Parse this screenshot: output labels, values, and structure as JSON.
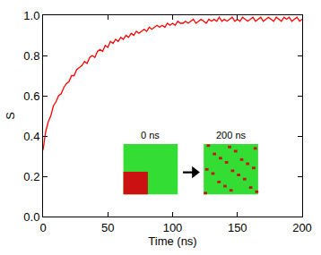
{
  "chart_data": {
    "type": "line",
    "x_label": "Time (ns)",
    "y_label": "S",
    "annotations": [
      {
        "text": "0 ns"
      },
      {
        "text": "200 ns"
      }
    ],
    "x": [
      0,
      2,
      4,
      6,
      8,
      10,
      12,
      14,
      16,
      18,
      20,
      22,
      24,
      26,
      28,
      30,
      32,
      34,
      36,
      38,
      40,
      42,
      44,
      46,
      48,
      50,
      52,
      54,
      56,
      58,
      60,
      62,
      64,
      66,
      68,
      70,
      72,
      74,
      76,
      78,
      80,
      82,
      84,
      86,
      88,
      90,
      92,
      94,
      96,
      98,
      100,
      102,
      104,
      106,
      108,
      110,
      112,
      114,
      116,
      118,
      120,
      122,
      124,
      126,
      128,
      130,
      132,
      134,
      136,
      138,
      140,
      142,
      144,
      146,
      148,
      150,
      152,
      154,
      156,
      158,
      160,
      162,
      164,
      166,
      168,
      170,
      172,
      174,
      176,
      178,
      180,
      182,
      184,
      186,
      188,
      190,
      192,
      194,
      196,
      198,
      200
    ],
    "series": [
      {
        "color": "#ff0000",
        "values": [
          0.33,
          0.42,
          0.47,
          0.5,
          0.55,
          0.57,
          0.6,
          0.61,
          0.64,
          0.66,
          0.67,
          0.7,
          0.7,
          0.73,
          0.74,
          0.75,
          0.77,
          0.76,
          0.79,
          0.8,
          0.79,
          0.82,
          0.83,
          0.82,
          0.85,
          0.84,
          0.87,
          0.86,
          0.88,
          0.87,
          0.89,
          0.88,
          0.9,
          0.89,
          0.91,
          0.9,
          0.92,
          0.91,
          0.92,
          0.93,
          0.92,
          0.94,
          0.93,
          0.94,
          0.95,
          0.94,
          0.95,
          0.94,
          0.96,
          0.95,
          0.96,
          0.95,
          0.97,
          0.96,
          0.96,
          0.97,
          0.96,
          0.97,
          0.98,
          0.96,
          0.97,
          0.98,
          0.97,
          0.96,
          0.98,
          0.97,
          0.98,
          0.97,
          0.99,
          0.97,
          0.98,
          0.97,
          0.98,
          0.99,
          0.97,
          0.98,
          0.97,
          0.99,
          0.98,
          0.97,
          0.98,
          0.99,
          0.97,
          0.98,
          0.99,
          0.97,
          0.98,
          0.99,
          0.98,
          0.97,
          0.99,
          0.98,
          0.97,
          0.99,
          0.98,
          0.99,
          0.97,
          0.98,
          0.99,
          0.97,
          0.98
        ]
      }
    ],
    "xlim": [
      0,
      200
    ],
    "xticks": [
      0,
      50,
      100,
      150,
      200
    ],
    "ylim": [
      0,
      1
    ],
    "yticks": [
      {
        "value": 0,
        "label": "0.0"
      },
      0.2,
      0.4,
      0.6,
      0.8,
      {
        "value": 1,
        "label": "1.0"
      }
    ],
    "grid": false
  }
}
